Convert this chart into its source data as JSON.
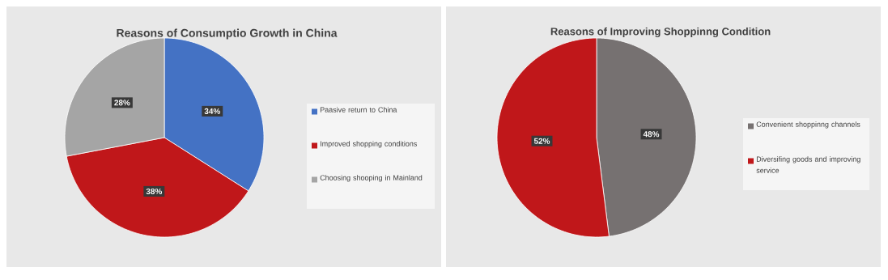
{
  "chart_data": [
    {
      "type": "pie",
      "title": "Reasons of Consumptio Growth in China",
      "categories": [
        "Paasive return to China",
        "Improved shopping conditions",
        "Choosing shooping in Mainland"
      ],
      "values": [
        34,
        38,
        28
      ],
      "colors": [
        "#4472c4",
        "#c0171a",
        "#a5a5a5"
      ],
      "value_labels": [
        "34%",
        "38%",
        "28%"
      ],
      "legend": "right"
    },
    {
      "type": "pie",
      "title": "Reasons of Improving Shoppinng Condition",
      "categories": [
        "Convenient shoppinng channels",
        "Diversifing goods and improving service"
      ],
      "values": [
        48,
        52
      ],
      "colors": [
        "#767171",
        "#c0171a"
      ],
      "value_labels": [
        "48%",
        "52%"
      ],
      "legend": "right"
    }
  ]
}
